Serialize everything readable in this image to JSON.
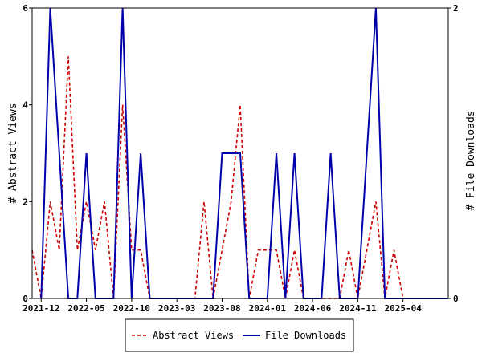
{
  "chart_data": {
    "type": "line",
    "x_tick_labels": [
      "2021-12",
      "2022-05",
      "2022-10",
      "2023-03",
      "2023-08",
      "2024-01",
      "2024-06",
      "2024-11",
      "2025-04"
    ],
    "x": [
      "2021-11",
      "2021-12",
      "2022-01",
      "2022-02",
      "2022-03",
      "2022-04",
      "2022-05",
      "2022-06",
      "2022-07",
      "2022-08",
      "2022-09",
      "2022-10",
      "2022-11",
      "2022-12",
      "2023-01",
      "2023-02",
      "2023-03",
      "2023-04",
      "2023-05",
      "2023-06",
      "2023-07",
      "2023-08",
      "2023-09",
      "2023-10",
      "2023-11",
      "2023-12",
      "2024-01",
      "2024-02",
      "2024-03",
      "2024-04",
      "2024-05",
      "2024-06",
      "2024-07",
      "2024-08",
      "2024-09",
      "2024-10",
      "2024-11",
      "2024-12",
      "2025-01",
      "2025-02",
      "2025-03",
      "2025-04",
      "2025-05",
      "2025-06",
      "2025-07",
      "2025-08",
      "2025-09"
    ],
    "ylabel_left": "# Abstract Views",
    "ylabel_right": "# File Downloads",
    "ylim_left": [
      0,
      6
    ],
    "ylim_right": [
      0,
      2
    ],
    "y_ticks_left": [
      "0",
      "2",
      "4",
      "6"
    ],
    "y_ticks_right": [
      "0",
      "2"
    ],
    "series": [
      {
        "name": "Abstract Views",
        "axis": "left",
        "color": "#cc0000",
        "style": "dashed",
        "values": [
          1,
          0,
          2,
          1,
          5,
          1,
          2,
          1,
          2,
          0,
          4,
          1,
          1,
          0,
          0,
          0,
          0,
          0,
          0,
          2,
          0,
          1,
          2,
          4,
          0,
          1,
          1,
          1,
          0,
          1,
          0,
          0,
          0,
          0,
          0,
          1,
          0,
          1,
          2,
          0,
          1,
          0,
          null,
          null,
          null,
          null,
          null
        ]
      },
      {
        "name": "File Downloads",
        "axis": "right",
        "color": "#0000aa",
        "style": "solid",
        "values": [
          null,
          0,
          2,
          1,
          0,
          0,
          1,
          0,
          0,
          0,
          2,
          0,
          1,
          0,
          0,
          0,
          0,
          0,
          0,
          0,
          0,
          1,
          1,
          1,
          0,
          0,
          0,
          1,
          0,
          1,
          0,
          0,
          0,
          1,
          0,
          0,
          0,
          1,
          2,
          0,
          0,
          0,
          0,
          0,
          0,
          0,
          0
        ]
      }
    ],
    "legend": {
      "placement": "bottom"
    },
    "grid": false
  }
}
